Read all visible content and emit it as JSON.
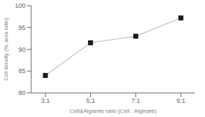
{
  "chart_data": {
    "type": "line",
    "categories": [
      "3:1",
      "5:1",
      "7:1",
      "9:1"
    ],
    "values": [
      84.0,
      91.5,
      93.0,
      97.2
    ],
    "xlabel": "Cell&Algiante ratio (Cell : Alginate)",
    "ylabel": "Cell density (%, area ratio)",
    "ylim": [
      80,
      100
    ],
    "yticks": [
      80,
      85,
      90,
      95,
      100
    ],
    "color": "#c0c0c0",
    "colors": [
      "#1a1a1a",
      "#1a1a1a",
      "#1a1a1a",
      "#1a1a1a"
    ],
    "marker": "square",
    "grid": false
  }
}
